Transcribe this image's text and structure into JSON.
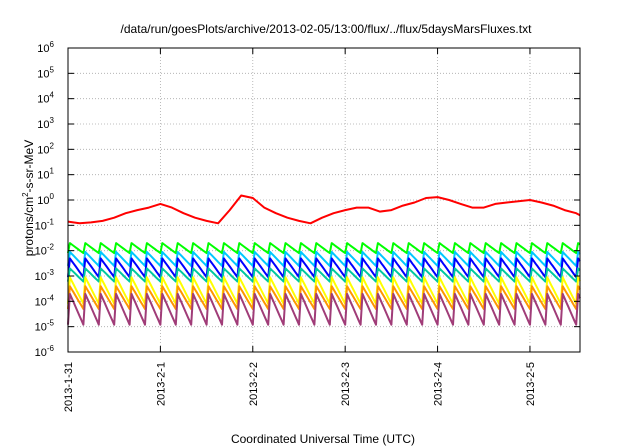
{
  "chart_data": {
    "type": "line",
    "title": "/data/run/goesPlots/archive/2013-02-05/13:00/flux/../flux/5daysMarsFluxes.txt",
    "xlabel": "Coordinated Universal Time (UTC)",
    "ylabel": "protons/cm²-s-sr-MeV",
    "ylabel_base": "protons/cm",
    "ylabel_sup": "2",
    "ylabel_rest": "-s-sr-MeV",
    "yscale": "log",
    "ylim": [
      1e-06,
      1000000.0
    ],
    "ytick_base": "10",
    "yticks": [
      {
        "value": 1e-06,
        "exp": "-6"
      },
      {
        "value": 1e-05,
        "exp": "-5"
      },
      {
        "value": 0.0001,
        "exp": "-4"
      },
      {
        "value": 0.001,
        "exp": "-3"
      },
      {
        "value": 0.01,
        "exp": "-2"
      },
      {
        "value": 0.1,
        "exp": "-1"
      },
      {
        "value": 1,
        "exp": "0"
      },
      {
        "value": 10,
        "exp": "1"
      },
      {
        "value": 100,
        "exp": "2"
      },
      {
        "value": 1000.0,
        "exp": "3"
      },
      {
        "value": 10000.0,
        "exp": "4"
      },
      {
        "value": 100000.0,
        "exp": "5"
      },
      {
        "value": 1000000.0,
        "exp": "6"
      }
    ],
    "xlim": [
      "2013-01-31T00:00",
      "2013-02-05T13:00"
    ],
    "xticks": [
      {
        "date": "2013-01-31T00:00",
        "label": "2013-1-31"
      },
      {
        "date": "2013-02-01T00:00",
        "label": "2013-2-1"
      },
      {
        "date": "2013-02-02T00:00",
        "label": "2013-2-2"
      },
      {
        "date": "2013-02-03T00:00",
        "label": "2013-2-3"
      },
      {
        "date": "2013-02-04T00:00",
        "label": "2013-2-4"
      },
      {
        "date": "2013-02-05T00:00",
        "label": "2013-2-5"
      }
    ],
    "grid": true,
    "legend": "none",
    "series": [
      {
        "color": "#ff0000",
        "x": [
          "2013-01-31T00:00",
          "2013-01-31T03:00",
          "2013-01-31T06:00",
          "2013-01-31T09:00",
          "2013-01-31T12:00",
          "2013-01-31T15:00",
          "2013-01-31T18:00",
          "2013-01-31T21:00",
          "2013-02-01T00:00",
          "2013-02-01T03:00",
          "2013-02-01T06:00",
          "2013-02-01T09:00",
          "2013-02-01T12:00",
          "2013-02-01T15:00",
          "2013-02-01T18:00",
          "2013-02-01T21:00",
          "2013-02-02T00:00",
          "2013-02-02T03:00",
          "2013-02-02T06:00",
          "2013-02-02T09:00",
          "2013-02-02T12:00",
          "2013-02-02T15:00",
          "2013-02-02T18:00",
          "2013-02-02T21:00",
          "2013-02-03T00:00",
          "2013-02-03T03:00",
          "2013-02-03T06:00",
          "2013-02-03T09:00",
          "2013-02-03T12:00",
          "2013-02-03T15:00",
          "2013-02-03T18:00",
          "2013-02-03T21:00",
          "2013-02-04T00:00",
          "2013-02-04T03:00",
          "2013-02-04T06:00",
          "2013-02-04T09:00",
          "2013-02-04T12:00",
          "2013-02-04T15:00",
          "2013-02-04T18:00",
          "2013-02-04T21:00",
          "2013-02-05T00:00",
          "2013-02-05T03:00",
          "2013-02-05T06:00",
          "2013-02-05T09:00",
          "2013-02-05T12:00",
          "2013-02-05T13:00"
        ],
        "y": [
          0.14,
          0.12,
          0.13,
          0.15,
          0.2,
          0.3,
          0.4,
          0.5,
          0.7,
          0.5,
          0.3,
          0.2,
          0.15,
          0.12,
          0.4,
          1.5,
          1.2,
          0.5,
          0.3,
          0.2,
          0.15,
          0.12,
          0.2,
          0.3,
          0.4,
          0.5,
          0.5,
          0.35,
          0.4,
          0.6,
          0.8,
          1.2,
          1.3,
          1.0,
          0.7,
          0.5,
          0.5,
          0.7,
          0.8,
          0.9,
          1.0,
          0.8,
          0.6,
          0.4,
          0.3,
          0.25
        ]
      },
      {
        "color": "#00ff00",
        "x": [
          "2013-01-31T00:00",
          "2013-02-05T13:00"
        ],
        "y_high": 0.02,
        "y_low": 0.008
      },
      {
        "color": "#00c8ff",
        "x": [
          "2013-01-31T00:00",
          "2013-02-05T13:00"
        ],
        "y_high": 0.009,
        "y_low": 0.0025
      },
      {
        "color": "#0000ff",
        "x": [
          "2013-01-31T00:00",
          "2013-02-05T13:00"
        ],
        "y_high": 0.005,
        "y_low": 0.0009
      },
      {
        "color": "#00c8a0",
        "x": [
          "2013-01-31T00:00",
          "2013-02-05T13:00"
        ],
        "y_high": 0.002,
        "y_low": 0.0006
      },
      {
        "color": "#ffff00",
        "x": [
          "2013-01-31T00:00",
          "2013-02-05T13:00"
        ],
        "y_high": 0.0009,
        "y_low": 8e-05
      },
      {
        "color": "#ff9600",
        "x": [
          "2013-01-31T00:00",
          "2013-02-05T13:00"
        ],
        "y_high": 0.0004,
        "y_low": 5e-05
      },
      {
        "color": "#a03c78",
        "x": [
          "2013-01-31T00:00",
          "2013-02-05T13:00"
        ],
        "y_high": 0.0002,
        "y_low": 1.2e-05
      }
    ]
  }
}
